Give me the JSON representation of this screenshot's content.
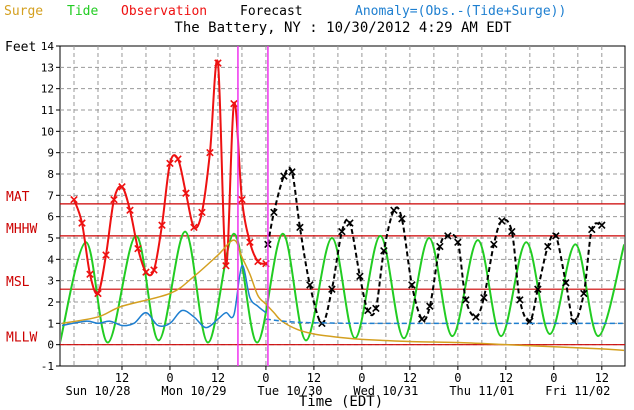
{
  "legend": [
    {
      "label": "Surge",
      "color": "#d4a020"
    },
    {
      "label": "Tide",
      "color": "#22cc22"
    },
    {
      "label": "Observation",
      "color": "#ee1111"
    },
    {
      "label": "Forecast",
      "color": "#000000"
    },
    {
      "label": "Anomaly=(Obs.-(Tide+Surge))",
      "color": "#1e7fd0"
    }
  ],
  "chart_data": {
    "type": "line",
    "title": "The Battery, NY : 10/30/2012 4:29 AM EDT",
    "ylabel": "Feet",
    "xlabel": "Time (EDT)",
    "ylim": [
      -1,
      14
    ],
    "xlim": [
      0,
      132
    ],
    "x_unit": "hours since Sun 10/28 00:00 EDT",
    "y_ticks": [
      -1,
      0,
      1,
      2,
      3,
      4,
      5,
      6,
      7,
      8,
      9,
      10,
      11,
      12,
      13,
      14
    ],
    "x_ticks": [
      {
        "x": 12,
        "label": "12"
      },
      {
        "x": 24,
        "label": "0"
      },
      {
        "x": 36,
        "label": "12"
      },
      {
        "x": 48,
        "label": "0"
      },
      {
        "x": 60,
        "label": "12"
      },
      {
        "x": 72,
        "label": "0"
      },
      {
        "x": 84,
        "label": "12"
      },
      {
        "x": 96,
        "label": "0"
      },
      {
        "x": 108,
        "label": "12"
      },
      {
        "x": 120,
        "label": "0"
      },
      {
        "x": 132,
        "label": "12"
      }
    ],
    "day_labels": [
      {
        "x": 6,
        "label": "Sun 10/28"
      },
      {
        "x": 30,
        "label": "Mon 10/29"
      },
      {
        "x": 54,
        "label": "Tue 10/30"
      },
      {
        "x": 78,
        "label": "Wed 10/31"
      },
      {
        "x": 102,
        "label": "Thu 11/01"
      },
      {
        "x": 126,
        "label": "Fri 11/02"
      }
    ],
    "datums": [
      {
        "label": "MAT",
        "y": 6.6,
        "color": "#cc0000"
      },
      {
        "label": "MHHW",
        "y": 5.1,
        "color": "#cc0000"
      },
      {
        "label": "MSL",
        "y": 2.6,
        "color": "#cc0000"
      },
      {
        "label": "MLLW",
        "y": 0.0,
        "color": "#cc0000"
      }
    ],
    "markers": [
      {
        "x": 41,
        "color": "#ee33ee"
      },
      {
        "x": 48.5,
        "color": "#ee33ee"
      }
    ],
    "series": [
      {
        "name": "Tide",
        "color": "#22cc22",
        "x": [
          -3.5,
          3.0,
          8.5,
          15.5,
          21.2,
          27.8,
          33.5,
          40.0,
          45.8,
          52.2,
          58.0,
          64.5,
          70.3,
          76.6,
          82.5,
          88.8,
          94.6,
          101.0,
          106.8,
          113.1,
          119.0,
          125.4,
          131.1,
          137.6
        ],
        "y": [
          0.1,
          4.8,
          0.1,
          5.1,
          0.2,
          5.3,
          0.1,
          5.2,
          0.1,
          5.2,
          0.2,
          5.0,
          0.3,
          5.1,
          0.3,
          5.0,
          0.4,
          4.9,
          0.4,
          4.8,
          0.5,
          4.7,
          0.4,
          4.7
        ]
      },
      {
        "name": "Observation",
        "color": "#ee1111",
        "x": [
          0,
          2,
          4,
          6,
          8,
          10,
          12,
          14,
          16,
          18,
          20,
          22,
          24,
          26,
          28,
          30,
          32,
          34,
          36,
          38,
          40,
          42,
          44,
          46,
          48
        ],
        "y": [
          6.8,
          5.7,
          3.3,
          2.4,
          4.2,
          6.8,
          7.4,
          6.3,
          4.5,
          3.4,
          3.5,
          5.6,
          8.5,
          8.7,
          7.1,
          5.5,
          6.2,
          9.0,
          13.2,
          3.7,
          11.3,
          6.8,
          4.8,
          3.9,
          3.8
        ]
      },
      {
        "name": "Forecast",
        "color": "#000000",
        "x": [
          48.5,
          50.0,
          52.5,
          54.5,
          56.5,
          59.0,
          62.0,
          64.5,
          67.0,
          69.0,
          71.5,
          73.5,
          75.5,
          77.5,
          80.0,
          82.0,
          84.5,
          87.0,
          89.0,
          91.5,
          93.5,
          96.0,
          98.0,
          100.5,
          102.5,
          105.0,
          107.0,
          109.5,
          111.5,
          114.0,
          116.0,
          118.5,
          120.5,
          123.0,
          125.0,
          127.5,
          129.5,
          132.0
        ],
        "y": [
          4.7,
          6.2,
          7.9,
          8.1,
          5.5,
          2.8,
          1.0,
          2.6,
          5.3,
          5.7,
          3.2,
          1.6,
          1.7,
          4.4,
          6.3,
          5.9,
          2.8,
          1.2,
          1.8,
          4.6,
          5.1,
          4.8,
          2.1,
          1.3,
          2.2,
          4.7,
          5.8,
          5.3,
          2.1,
          1.1,
          2.6,
          4.6,
          5.1,
          2.9,
          1.1,
          2.4,
          5.4,
          5.6
        ]
      },
      {
        "name": "Surge",
        "color": "#d4a020",
        "x": [
          -3,
          6,
          12,
          24,
          30,
          36,
          40,
          42,
          44,
          46,
          48,
          50,
          52,
          56,
          60,
          66,
          72,
          84,
          96,
          108,
          120,
          132,
          140
        ],
        "y": [
          1.0,
          1.3,
          1.8,
          2.4,
          3.2,
          4.2,
          4.9,
          4.1,
          3.3,
          2.3,
          1.9,
          1.5,
          1.1,
          0.7,
          0.5,
          0.35,
          0.25,
          0.15,
          0.1,
          0.0,
          -0.1,
          -0.2,
          -0.3
        ]
      },
      {
        "name": "Anomaly=(Obs.-(Tide+Surge))",
        "color": "#1e7fd0",
        "x": [
          -3,
          3,
          6,
          9,
          12,
          15,
          18,
          21,
          24,
          27,
          30,
          33,
          36,
          38,
          40,
          42,
          44,
          46,
          48
        ],
        "y": [
          0.9,
          1.1,
          1.0,
          1.1,
          0.9,
          1.0,
          1.5,
          0.9,
          1.0,
          1.6,
          1.3,
          0.8,
          1.2,
          1.5,
          1.4,
          3.7,
          2.2,
          1.8,
          1.5
        ]
      },
      {
        "name": "Anomaly forecast",
        "color": "#1e7fd0",
        "x": [
          48,
          56,
          72,
          96,
          120,
          140
        ],
        "y": [
          1.2,
          1.05,
          1.0,
          1.0,
          1.0,
          1.0
        ]
      }
    ]
  }
}
